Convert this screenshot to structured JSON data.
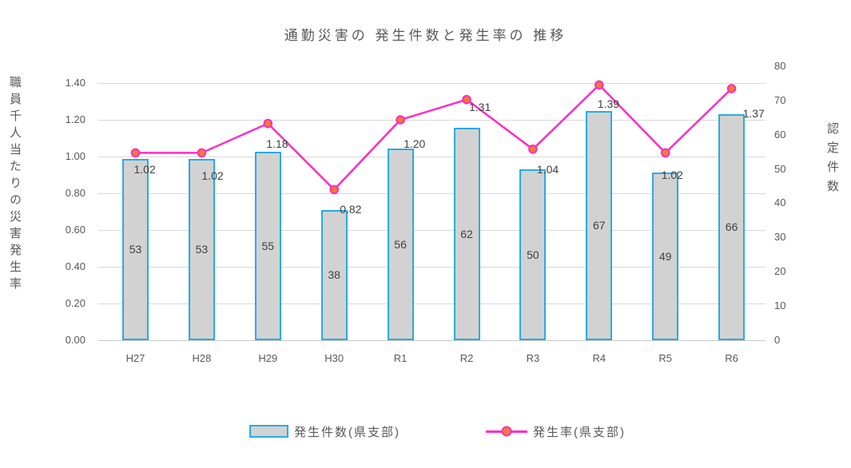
{
  "chart_data": {
    "type": "combo-bar-line",
    "title": "通勤災害の 発生件数と発生率の 推移",
    "categories": [
      "H27",
      "H28",
      "H29",
      "H30",
      "R1",
      "R2",
      "R3",
      "R4",
      "R5",
      "R6"
    ],
    "series": [
      {
        "name": "発生件数(県支部)",
        "type": "bar",
        "axis": "right",
        "values": [
          53,
          53,
          55,
          38,
          56,
          62,
          50,
          67,
          49,
          66
        ]
      },
      {
        "name": "発生率(県支部)",
        "type": "line",
        "axis": "left",
        "values": [
          1.02,
          1.02,
          1.18,
          0.82,
          1.2,
          1.31,
          1.04,
          1.39,
          1.02,
          1.37
        ],
        "value_labels": [
          "1.02",
          "1.02",
          "1.18",
          "0.82",
          "1.20",
          "1.31",
          "1.04",
          "1.39",
          "1.02",
          "1.37"
        ]
      }
    ],
    "left_axis": {
      "title": "職員千人当たりの災害発生率",
      "min": 0.0,
      "max": 1.4,
      "tick_labels": [
        "0.00",
        "0.20",
        "0.40",
        "0.60",
        "0.80",
        "1.00",
        "1.20",
        "1.40"
      ]
    },
    "right_axis": {
      "title": "認定件数",
      "min": 0,
      "max": 80,
      "tick_labels": [
        "0",
        "10",
        "20",
        "30",
        "40",
        "50",
        "60",
        "70",
        "80"
      ]
    },
    "grid": "horizontal",
    "legend_position": "bottom",
    "colors": {
      "background": "#FFFFFF",
      "bar_fill": "#D2D2D2",
      "bar_border": "#29ABE2",
      "line": "#FF2DC1",
      "marker_fill": "#ED7D31",
      "marker_border": "#FF2DC1",
      "title_text": "#595959",
      "axis_text": "#595959",
      "data_label_text": "#404040",
      "gridline": "#D9D9D9",
      "axis_line": "#C9C9C9"
    }
  }
}
